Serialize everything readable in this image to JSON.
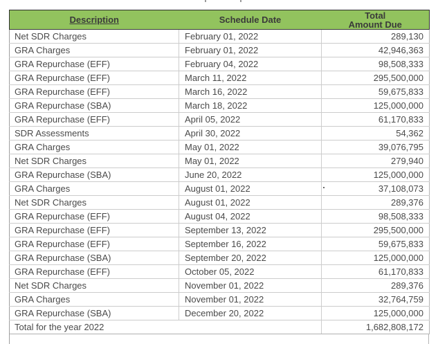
{
  "table": {
    "headers": {
      "description": "Description",
      "schedule_date": "Schedule Date",
      "total_line1": "Total",
      "total_line2": "Amount Due"
    },
    "rows": [
      {
        "description": "Net SDR Charges",
        "schedule_date": "February 01, 2022",
        "amount": "289,130"
      },
      {
        "description": "GRA Charges",
        "schedule_date": "February 01, 2022",
        "amount": "42,946,363"
      },
      {
        "description": "GRA Repurchase (EFF)",
        "schedule_date": "February 04, 2022",
        "amount": "98,508,333"
      },
      {
        "description": "GRA Repurchase (EFF)",
        "schedule_date": "March 11, 2022",
        "amount": "295,500,000"
      },
      {
        "description": "GRA Repurchase (EFF)",
        "schedule_date": "March 16, 2022",
        "amount": "59,675,833"
      },
      {
        "description": "GRA Repurchase (SBA)",
        "schedule_date": "March 18, 2022",
        "amount": "125,000,000"
      },
      {
        "description": "GRA Repurchase (EFF)",
        "schedule_date": "April 05, 2022",
        "amount": "61,170,833"
      },
      {
        "description": "SDR Assessments",
        "schedule_date": "April 30, 2022",
        "amount": "54,362"
      },
      {
        "description": "GRA Charges",
        "schedule_date": "May 01, 2022",
        "amount": "39,076,795"
      },
      {
        "description": "Net SDR Charges",
        "schedule_date": "May 01, 2022",
        "amount": "279,940"
      },
      {
        "description": "GRA Repurchase (SBA)",
        "schedule_date": "June 20, 2022",
        "amount": "125,000,000"
      },
      {
        "description": "GRA Charges",
        "schedule_date": "August 01, 2022",
        "amount": "37,108,073"
      },
      {
        "description": "Net SDR Charges",
        "schedule_date": "August 01, 2022",
        "amount": "289,376"
      },
      {
        "description": "GRA Repurchase (EFF)",
        "schedule_date": "August 04, 2022",
        "amount": "98,508,333"
      },
      {
        "description": "GRA Repurchase (EFF)",
        "schedule_date": "September 13, 2022",
        "amount": "295,500,000"
      },
      {
        "description": "GRA Repurchase (EFF)",
        "schedule_date": "September 16, 2022",
        "amount": "59,675,833"
      },
      {
        "description": "GRA Repurchase (SBA)",
        "schedule_date": "September 20, 2022",
        "amount": "125,000,000"
      },
      {
        "description": "GRA Repurchase (EFF)",
        "schedule_date": "October 05, 2022",
        "amount": "61,170,833"
      },
      {
        "description": "Net SDR Charges",
        "schedule_date": "November 01, 2022",
        "amount": "289,376"
      },
      {
        "description": "GRA Charges",
        "schedule_date": "November 01, 2022",
        "amount": "32,764,759"
      },
      {
        "description": "GRA Repurchase (SBA)",
        "schedule_date": "December 20, 2022",
        "amount": "125,000,000"
      }
    ],
    "total_row": {
      "label": "Total for the year 2022",
      "amount": "1,682,808,172"
    }
  },
  "colors": {
    "header_background": "#92c35e",
    "header_text": "#3a3a3a",
    "body_text": "#4a4a4a",
    "row_border": "#cccccc",
    "header_border": "#2e2e2e"
  }
}
